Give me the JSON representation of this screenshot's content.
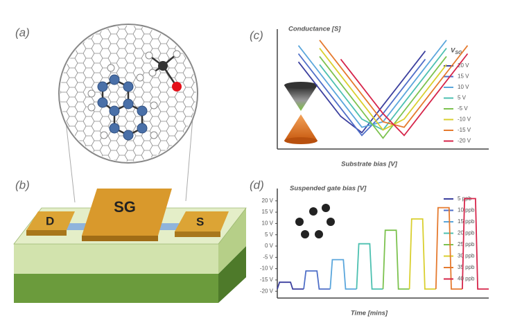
{
  "figure": {
    "panel_labels": [
      "(a)",
      "(b)",
      "(c)",
      "(d)"
    ],
    "device_labels": {
      "gate": "SG",
      "drain": "D",
      "source": "S"
    }
  },
  "chart_data": [
    {
      "type": "line",
      "title": "Conductance [S]",
      "x_label": "Substrate bias [V]",
      "legend_title": "V",
      "legend_title_sub": "SG",
      "x": [
        0,
        1,
        2,
        3,
        4,
        5,
        6,
        7,
        8,
        9,
        10
      ],
      "xlim": [
        0,
        10
      ],
      "ylim": [
        0,
        10.5
      ],
      "series": [
        {
          "name": "20 V",
          "color": "#3b3f9e",
          "values": [
            null,
            8,
            5.5,
            3,
            1.5,
            4,
            6.5,
            9,
            null,
            null,
            null
          ]
        },
        {
          "name": "15 V",
          "color": "#4f6fc8",
          "values": [
            null,
            8.75,
            6.25,
            3.75,
            1.25,
            3.25,
            5.75,
            8.25,
            null,
            null,
            null
          ]
        },
        {
          "name": "10 V",
          "color": "#5aa6dc",
          "values": [
            null,
            9.5,
            7,
            4.5,
            2,
            2.5,
            5,
            7.5,
            10,
            null,
            null
          ]
        },
        {
          "name": "5 V",
          "color": "#4cc0b0",
          "values": [
            null,
            null,
            7.75,
            5.25,
            2.75,
            1.75,
            4.25,
            6.75,
            9.25,
            null,
            null
          ]
        },
        {
          "name": "-5 V",
          "color": "#7cc24e",
          "values": [
            null,
            null,
            8.5,
            6,
            3.5,
            1,
            3.5,
            6,
            8.5,
            null,
            null
          ]
        },
        {
          "name": "-10 V",
          "color": "#d9cf2e",
          "values": [
            null,
            null,
            9.25,
            6.75,
            4.25,
            1.75,
            2.75,
            5.25,
            7.75,
            null,
            null
          ]
        },
        {
          "name": "-15 V",
          "color": "#e57a2e",
          "values": [
            null,
            null,
            10,
            7.5,
            5,
            2.5,
            2,
            4.5,
            7,
            9.5,
            null
          ]
        },
        {
          "name": "-20 V",
          "color": "#d6254a",
          "values": [
            null,
            null,
            null,
            8.25,
            5.75,
            3.25,
            1.25,
            3.75,
            6.25,
            8.75,
            null
          ]
        }
      ]
    },
    {
      "type": "line",
      "title": "Suspended gate bias [V]",
      "x_label": "Time [mins]",
      "xlim": [
        0,
        48
      ],
      "ylim": [
        -23,
        23
      ],
      "yticks": [
        {
          "value": 20,
          "label": "20 V"
        },
        {
          "value": 15,
          "label": "15 V"
        },
        {
          "value": 10,
          "label": "10 V"
        },
        {
          "value": 5,
          "label": "5 V"
        },
        {
          "value": 0,
          "label": "0 V"
        },
        {
          "value": -5,
          "label": "-5 V"
        },
        {
          "value": -10,
          "label": "-10 V"
        },
        {
          "value": -15,
          "label": "-15 V"
        },
        {
          "value": -20,
          "label": "-20 V"
        }
      ],
      "series": [
        {
          "name": "5 ppb",
          "color": "#3b3f9e",
          "x": [
            0,
            0.5,
            3,
            3.5,
            6
          ],
          "values": [
            -19,
            -16,
            -16,
            -19,
            -19
          ]
        },
        {
          "name": "10 ppb",
          "color": "#4f6fc8",
          "x": [
            6,
            6.5,
            9,
            9.5,
            12
          ],
          "values": [
            -19,
            -11,
            -11,
            -19,
            -19
          ]
        },
        {
          "name": "15 ppb",
          "color": "#5aa6dc",
          "x": [
            12,
            12.5,
            15,
            15.5,
            18
          ],
          "values": [
            -19,
            -6,
            -6,
            -19,
            -19
          ]
        },
        {
          "name": "20 ppb",
          "color": "#4cc0b0",
          "x": [
            18,
            18.5,
            21,
            21.5,
            24
          ],
          "values": [
            -19,
            1,
            1,
            -19,
            -19
          ]
        },
        {
          "name": "25 ppb",
          "color": "#7cc24e",
          "x": [
            24,
            24.5,
            27,
            27.5,
            30
          ],
          "values": [
            -19,
            7,
            7,
            -19,
            -19
          ]
        },
        {
          "name": "30 ppb",
          "color": "#d9cf2e",
          "x": [
            30,
            30.5,
            33,
            33.5,
            36
          ],
          "values": [
            -19,
            12,
            12,
            -19,
            -19
          ]
        },
        {
          "name": "35 ppb",
          "color": "#e57a2e",
          "x": [
            36,
            36.5,
            39,
            39.5,
            42
          ],
          "values": [
            -19,
            17,
            17,
            -19,
            -19
          ]
        },
        {
          "name": "40 ppb",
          "color": "#d6254a",
          "x": [
            42,
            42.5,
            45,
            45.5,
            48
          ],
          "values": [
            -19,
            21,
            21,
            -19,
            -19
          ]
        }
      ]
    }
  ]
}
